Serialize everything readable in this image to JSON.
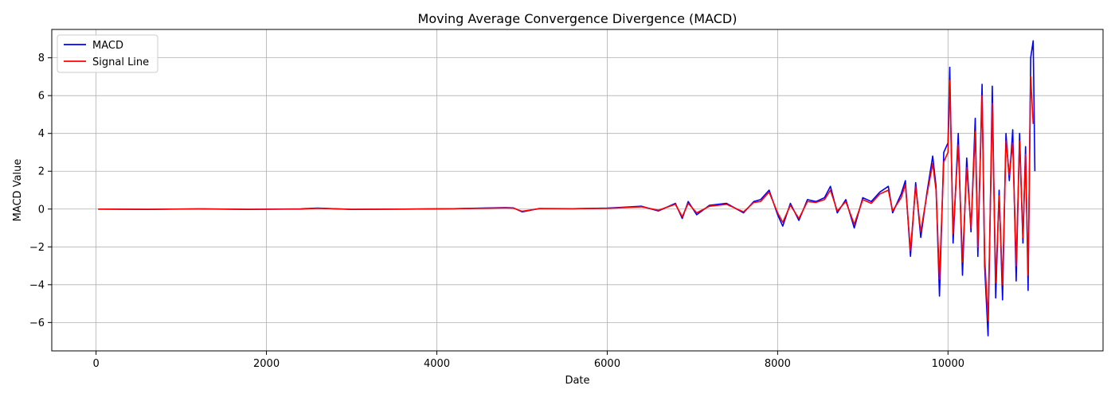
{
  "chart_data": {
    "type": "line",
    "title": "Moving Average Convergence Divergence (MACD)",
    "xlabel": "Date",
    "ylabel": "MACD Value",
    "xlim": [
      -520,
      11820
    ],
    "ylim": [
      -7.5,
      9.5
    ],
    "x_ticks": [
      0,
      2000,
      4000,
      6000,
      8000,
      10000
    ],
    "y_ticks": [
      -6,
      -4,
      -2,
      0,
      2,
      4,
      6,
      8
    ],
    "grid": true,
    "legend_position": "top-left",
    "series": [
      {
        "name": "MACD",
        "color": "#0000ff",
        "x": [
          25,
          600,
          1200,
          1800,
          2400,
          2600,
          3000,
          3600,
          4200,
          4800,
          4900,
          5000,
          5200,
          5600,
          6000,
          6200,
          6400,
          6600,
          6800,
          6880,
          6950,
          7050,
          7200,
          7400,
          7600,
          7720,
          7800,
          7900,
          8000,
          8060,
          8150,
          8250,
          8350,
          8450,
          8550,
          8620,
          8700,
          8800,
          8900,
          9000,
          9100,
          9200,
          9300,
          9350,
          9450,
          9500,
          9560,
          9620,
          9680,
          9750,
          9820,
          9860,
          9900,
          9950,
          10000,
          10020,
          10060,
          10120,
          10170,
          10220,
          10270,
          10320,
          10350,
          10400,
          10430,
          10470,
          10500,
          10520,
          10560,
          10600,
          10640,
          10680,
          10720,
          10760,
          10800,
          10840,
          10880,
          10910,
          10940,
          10970,
          11000,
          11020
        ],
        "y": [
          0.0,
          -0.02,
          0.01,
          -0.02,
          0.01,
          0.05,
          -0.02,
          0.0,
          0.02,
          0.08,
          0.06,
          -0.15,
          0.03,
          0.02,
          0.05,
          0.1,
          0.15,
          -0.1,
          0.3,
          -0.5,
          0.4,
          -0.3,
          0.2,
          0.3,
          -0.2,
          0.4,
          0.5,
          1.0,
          -0.3,
          -0.9,
          0.3,
          -0.6,
          0.5,
          0.4,
          0.6,
          1.2,
          -0.2,
          0.5,
          -1.0,
          0.6,
          0.4,
          0.9,
          1.2,
          -0.2,
          0.8,
          1.5,
          -2.5,
          1.4,
          -1.5,
          0.8,
          2.8,
          1.2,
          -4.6,
          3.0,
          3.5,
          7.5,
          -1.8,
          4.0,
          -3.5,
          2.7,
          -1.2,
          4.8,
          -2.5,
          6.6,
          -3.0,
          -6.7,
          1.0,
          6.5,
          -4.7,
          1.0,
          -4.8,
          4.0,
          1.5,
          4.2,
          -3.8,
          4.0,
          -1.8,
          3.3,
          -4.3,
          8.0,
          8.9,
          2.0
        ]
      },
      {
        "name": "Signal Line",
        "color": "#ff0000",
        "x": [
          25,
          600,
          1200,
          1800,
          2400,
          2600,
          3000,
          3600,
          4200,
          4800,
          4900,
          5000,
          5200,
          5600,
          6000,
          6200,
          6400,
          6600,
          6800,
          6880,
          6950,
          7050,
          7200,
          7400,
          7600,
          7720,
          7800,
          7900,
          8000,
          8060,
          8150,
          8250,
          8350,
          8450,
          8550,
          8620,
          8700,
          8800,
          8900,
          9000,
          9100,
          9200,
          9300,
          9350,
          9450,
          9500,
          9560,
          9620,
          9680,
          9750,
          9820,
          9860,
          9900,
          9950,
          10000,
          10020,
          10060,
          10120,
          10170,
          10220,
          10270,
          10320,
          10350,
          10400,
          10430,
          10470,
          10500,
          10520,
          10560,
          10600,
          10640,
          10680,
          10720,
          10760,
          10800,
          10840,
          10880,
          10910,
          10940,
          10970,
          11000
        ],
        "y": [
          0.0,
          -0.01,
          0.01,
          -0.01,
          0.0,
          0.04,
          -0.01,
          0.0,
          0.02,
          0.06,
          0.05,
          -0.12,
          0.02,
          0.02,
          0.04,
          0.08,
          0.12,
          -0.06,
          0.25,
          -0.4,
          0.3,
          -0.2,
          0.15,
          0.25,
          -0.15,
          0.35,
          0.4,
          0.9,
          -0.2,
          -0.7,
          0.2,
          -0.5,
          0.4,
          0.35,
          0.5,
          1.0,
          -0.1,
          0.4,
          -0.8,
          0.5,
          0.3,
          0.8,
          1.0,
          -0.1,
          0.6,
          1.3,
          -2.2,
          1.2,
          -1.2,
          0.7,
          2.4,
          1.0,
          -3.7,
          2.5,
          3.0,
          6.8,
          -1.3,
          3.4,
          -2.8,
          2.2,
          -1.0,
          4.1,
          -2.0,
          6.0,
          -2.5,
          -5.9,
          0.8,
          5.6,
          -3.9,
          0.7,
          -4.0,
          3.6,
          1.8,
          3.5,
          -3.0,
          3.6,
          -1.5,
          2.9,
          -3.5,
          7.0,
          4.5
        ]
      }
    ]
  }
}
